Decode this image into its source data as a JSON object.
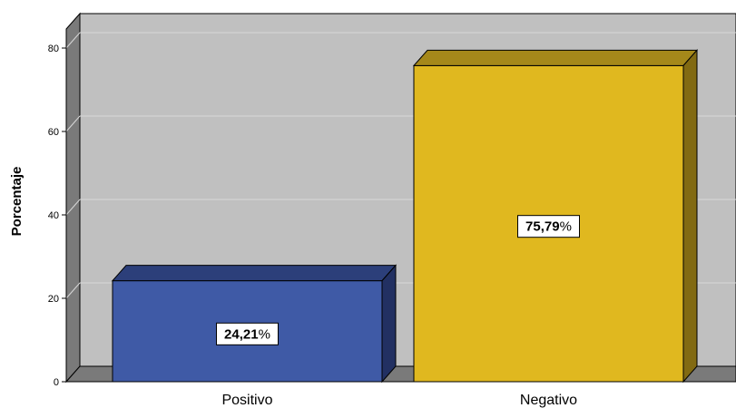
{
  "chart_data": {
    "type": "bar",
    "ylabel": "Porcentaje",
    "xlabel": "",
    "ylim": [
      0,
      80
    ],
    "yticks": [
      0,
      20,
      40,
      60,
      80
    ],
    "grid": true,
    "categories": [
      "Positivo",
      "Negativo"
    ],
    "values": [
      24.21,
      75.79
    ],
    "data_labels": [
      {
        "number": "24,21",
        "percent": "%"
      },
      {
        "number": "75,79",
        "percent": "%"
      }
    ],
    "colors": {
      "bars": [
        "#3f5aa6",
        "#e0b81f"
      ],
      "bar_tops": [
        "#2c3f7a",
        "#a5881a"
      ],
      "bar_sides": [
        "#223062",
        "#826a12"
      ],
      "plot_back": "#c0c0c0",
      "left_wall": "#7a7a7a",
      "floor": "#7a7a7a",
      "gridline": "#d8d8d8"
    }
  }
}
